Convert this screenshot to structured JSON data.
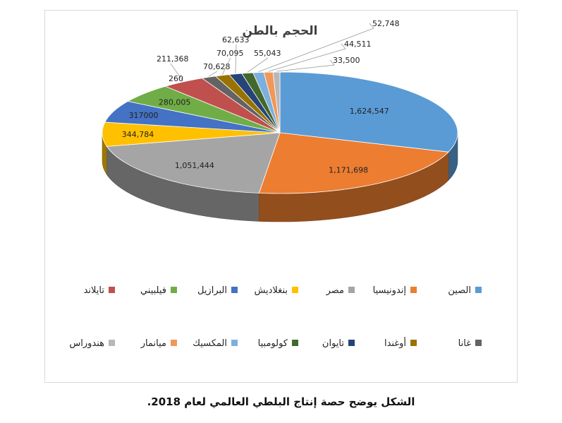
{
  "chart_data": {
    "type": "pie",
    "title": "الحجم بالطن",
    "legend": "bottom",
    "slices": [
      {
        "name": "الصين",
        "value": 1624547,
        "label": "1,624,547",
        "color": "#5b9bd5"
      },
      {
        "name": "إندونيسيا",
        "value": 1171698,
        "label": "1,171,698",
        "color": "#ed7d31"
      },
      {
        "name": "مصر",
        "value": 1051444,
        "label": "1,051,444",
        "color": "#a5a5a5"
      },
      {
        "name": "بنغلاديش",
        "value": 344784,
        "label": "344,784",
        "color": "#ffc000"
      },
      {
        "name": "البرازيل",
        "value": 317000,
        "label": "317000",
        "color": "#4472c4"
      },
      {
        "name": "فيلبيني",
        "value": 280005,
        "label": "280,005",
        "color": "#70ad47"
      },
      {
        "name": "تايلاند",
        "value": 211368,
        "label": "211,368",
        "color": "#c0504d"
      },
      {
        "name": "غانا",
        "value": 70628,
        "label": "70,628",
        "color": "#636363"
      },
      {
        "name": "أوغندا",
        "value": 70095,
        "label": "70,095",
        "color": "#997300"
      },
      {
        "name": "تايوان",
        "value": 62633,
        "label": "62,633",
        "color": "#264478"
      },
      {
        "name": "كولومبيا",
        "value": 55043,
        "label": "55,043",
        "color": "#43682b"
      },
      {
        "name": "المكسيك",
        "value": 52748,
        "label": "52,748",
        "color": "#7cafdd"
      },
      {
        "name": "ميانمار",
        "value": 44511,
        "label": "44,511",
        "color": "#f1975a"
      },
      {
        "name": "هندوراس",
        "value": 33500,
        "label": "33,500",
        "color": "#b7b7b7"
      }
    ],
    "extra_labels": [
      "260"
    ]
  },
  "caption": "الشكل يوضح حصة إنتاج البلطي العالمي لعام 2018."
}
